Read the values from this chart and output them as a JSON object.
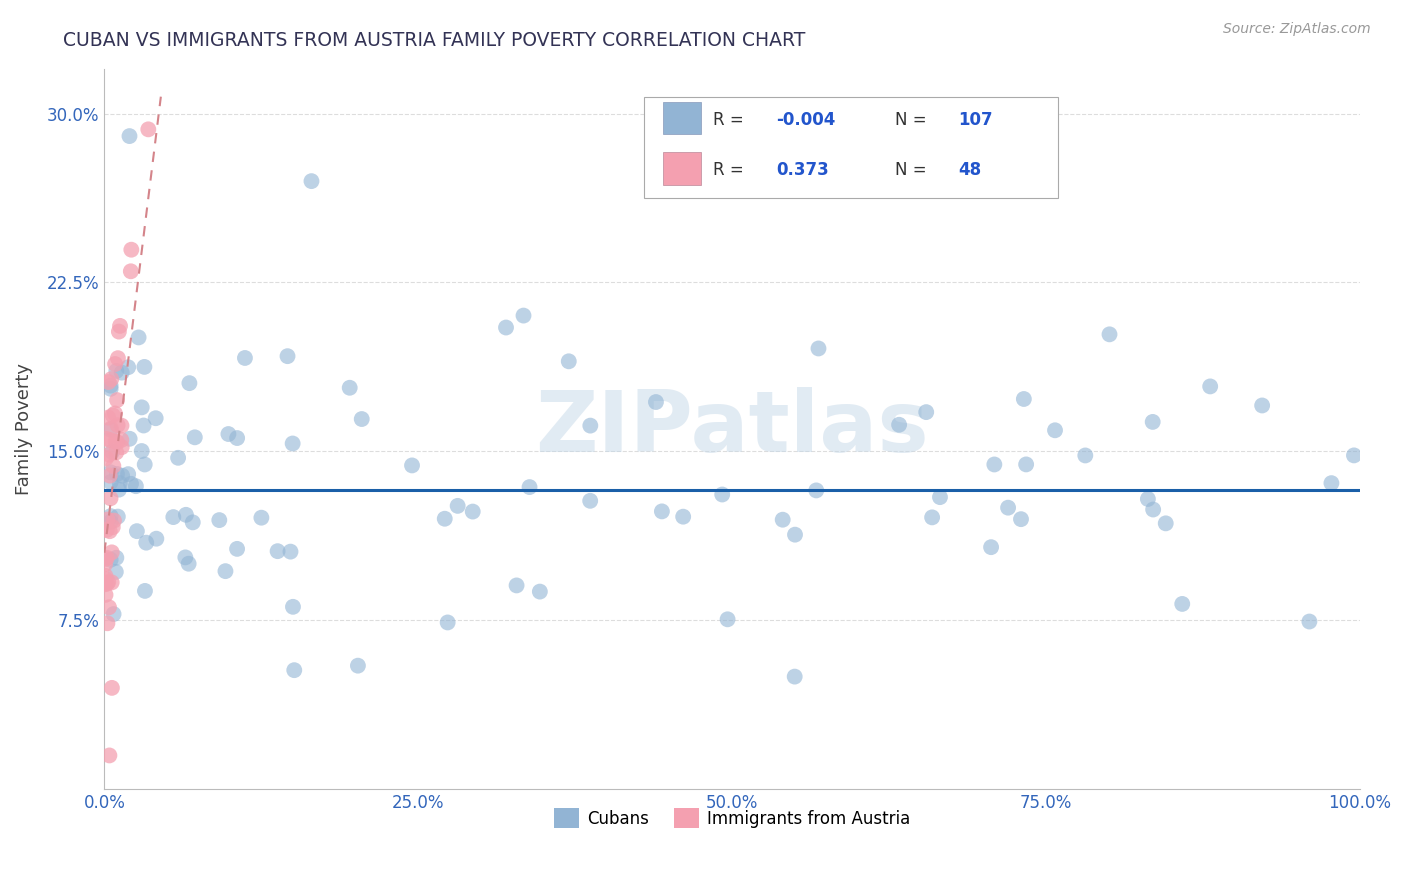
{
  "title": "CUBAN VS IMMIGRANTS FROM AUSTRIA FAMILY POVERTY CORRELATION CHART",
  "source": "Source: ZipAtlas.com",
  "ylabel": "Family Poverty",
  "xlim": [
    0,
    100
  ],
  "ylim": [
    0,
    32
  ],
  "yticks": [
    7.5,
    15.0,
    22.5,
    30.0
  ],
  "xticks": [
    0,
    25,
    50,
    75,
    100
  ],
  "xtick_labels": [
    "0.0%",
    "25.0%",
    "50.0%",
    "75.0%",
    "100.0%"
  ],
  "ytick_labels": [
    "7.5%",
    "15.0%",
    "22.5%",
    "30.0%"
  ],
  "color_blue": "#92B4D4",
  "color_pink": "#F4A0B0",
  "color_blue_line": "#1A5FA8",
  "color_pink_line": "#D4848A",
  "watermark": "ZIPatlas",
  "watermark_color": "#C5D8E8",
  "title_color": "#333355",
  "axis_label_color": "#444444",
  "tick_color": "#3366BB",
  "grid_color": "#DDDDDD",
  "background_color": "#FFFFFF",
  "blue_line_y": 13.3,
  "pink_line_slope": 4.5,
  "pink_line_intercept": 10.5,
  "pink_line_x_end": 4.5
}
